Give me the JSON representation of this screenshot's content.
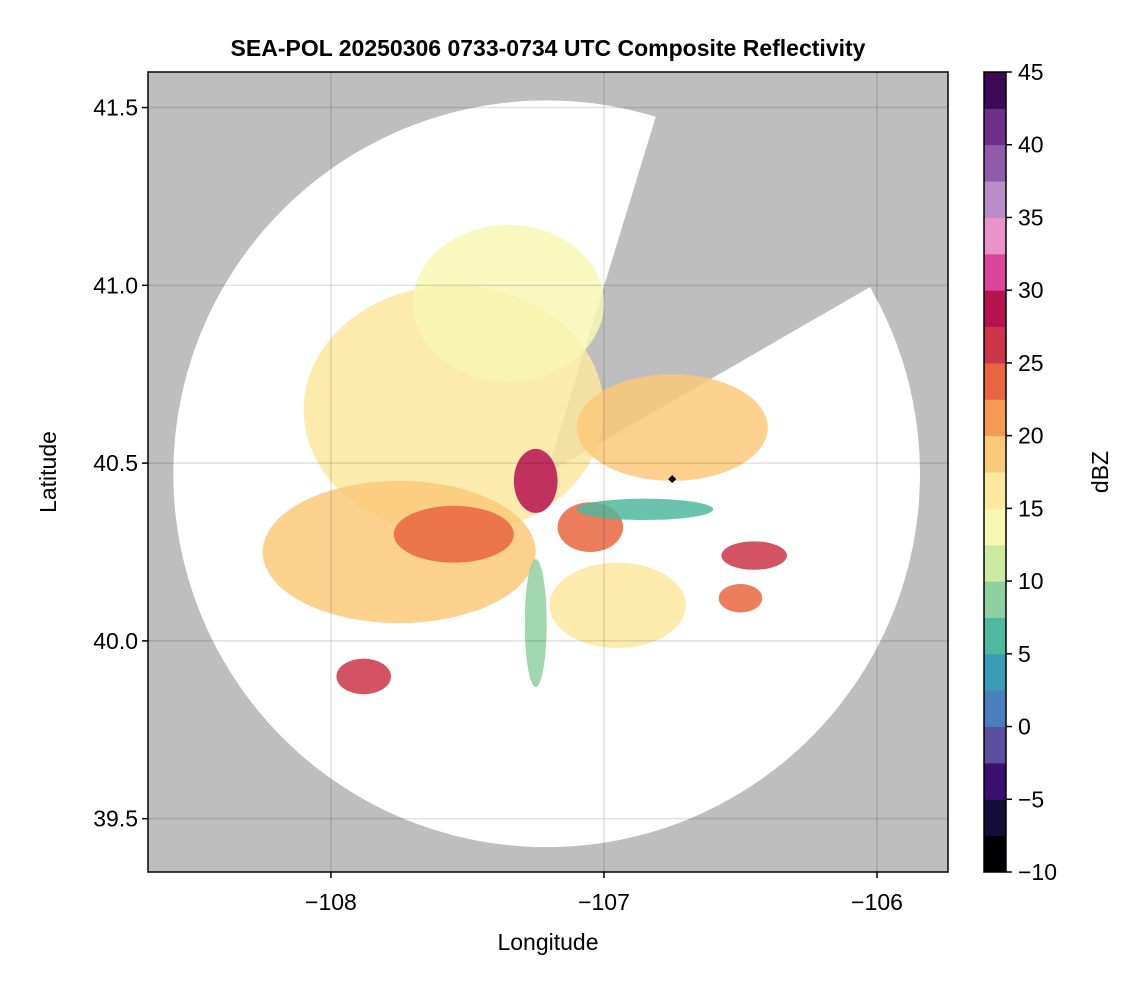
{
  "chart_data": {
    "type": "heatmap",
    "title": "SEA-POL 20250306 0733-0734 UTC Composite Reflectivity",
    "xlabel": "Longitude",
    "ylabel": "Latitude",
    "xlim": [
      -108.67,
      -105.74
    ],
    "ylim": [
      39.35,
      41.6
    ],
    "xticks": [
      -108,
      -107,
      -106
    ],
    "yticks": [
      39.5,
      40.0,
      40.5,
      41.0,
      41.5
    ],
    "grid": true,
    "colorbar": {
      "label": "dBZ",
      "range": [
        -10,
        45
      ],
      "ticks": [
        -10,
        -5,
        0,
        5,
        10,
        15,
        20,
        25,
        30,
        35,
        40,
        45
      ],
      "colormap": "spectral-magma-discrete",
      "colors": [
        "#000004",
        "#140e36",
        "#3b0f70",
        "#5c4fa0",
        "#4a7fbf",
        "#3a9bb5",
        "#4fb89e",
        "#8fd0a0",
        "#cdeba0",
        "#f7f7b4",
        "#fde8a0",
        "#fbc97a",
        "#f59a55",
        "#e8653f",
        "#cc3547",
        "#b5124f",
        "#d8459a",
        "#e993c9",
        "#b98ec8",
        "#8e5ca8",
        "#6d2f8a",
        "#3d0b55"
      ]
    },
    "radar": {
      "center_lon": -107.21,
      "center_lat": 40.47,
      "range_deg_lat": 1.05,
      "blocked_sectors_bearing_deg": [
        [
          17,
          60
        ]
      ]
    },
    "marker": {
      "lon": -106.75,
      "lat": 40.455,
      "shape": "diamond",
      "color": "#000000"
    },
    "colors": {
      "background": "#bebebe",
      "coverage": "#ffffff",
      "grid": "#cccccc"
    },
    "echo_regions": [
      {
        "lon": -107.55,
        "lat": 40.65,
        "dbz": 16,
        "rx": 0.55,
        "ry": 0.35
      },
      {
        "lon": -107.35,
        "lat": 40.95,
        "dbz": 14,
        "rx": 0.35,
        "ry": 0.22
      },
      {
        "lon": -107.75,
        "lat": 40.25,
        "dbz": 19,
        "rx": 0.5,
        "ry": 0.2
      },
      {
        "lon": -107.55,
        "lat": 40.3,
        "dbz": 23,
        "rx": 0.22,
        "ry": 0.08
      },
      {
        "lon": -107.25,
        "lat": 40.45,
        "dbz": 28,
        "rx": 0.08,
        "ry": 0.09
      },
      {
        "lon": -107.05,
        "lat": 40.32,
        "dbz": 24,
        "rx": 0.12,
        "ry": 0.07
      },
      {
        "lon": -106.75,
        "lat": 40.6,
        "dbz": 18,
        "rx": 0.35,
        "ry": 0.15
      },
      {
        "lon": -106.45,
        "lat": 40.24,
        "dbz": 25,
        "rx": 0.12,
        "ry": 0.04
      },
      {
        "lon": -106.5,
        "lat": 40.12,
        "dbz": 23,
        "rx": 0.08,
        "ry": 0.04
      },
      {
        "lon": -107.88,
        "lat": 39.9,
        "dbz": 27,
        "rx": 0.1,
        "ry": 0.05
      },
      {
        "lon": -106.95,
        "lat": 40.1,
        "dbz": 17,
        "rx": 0.25,
        "ry": 0.12
      },
      {
        "lon": -107.25,
        "lat": 40.05,
        "dbz": 9,
        "rx": 0.04,
        "ry": 0.18
      },
      {
        "lon": -106.85,
        "lat": 40.37,
        "dbz": 6,
        "rx": 0.25,
        "ry": 0.03
      }
    ]
  }
}
